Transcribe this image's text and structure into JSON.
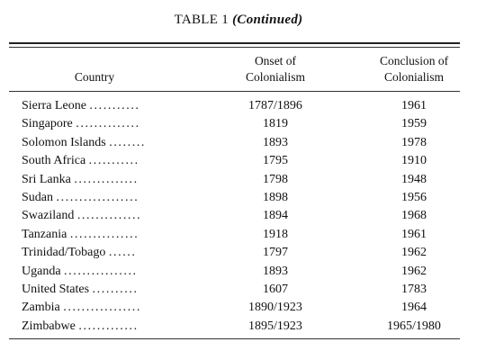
{
  "table": {
    "title_prefix": "TABLE 1",
    "title_suffix": "(Continued)",
    "headers": {
      "country": "Country",
      "onset_line1": "Onset of",
      "onset_line2": "Colonialism",
      "conclusion_line1": "Conclusion of",
      "conclusion_line2": "Colonialism"
    },
    "rows": [
      {
        "country": "Sierra Leone",
        "leader": "...........",
        "onset": "1787/1896",
        "conclusion": "1961"
      },
      {
        "country": "Singapore",
        "leader": "..............",
        "onset": "1819",
        "conclusion": "1959"
      },
      {
        "country": "Solomon Islands",
        "leader": "........",
        "onset": "1893",
        "conclusion": "1978"
      },
      {
        "country": "South Africa",
        "leader": "...........",
        "onset": "1795",
        "conclusion": "1910"
      },
      {
        "country": "Sri Lanka",
        "leader": "..............",
        "onset": "1798",
        "conclusion": "1948"
      },
      {
        "country": "Sudan",
        "leader": "..................",
        "onset": "1898",
        "conclusion": "1956"
      },
      {
        "country": "Swaziland",
        "leader": "..............",
        "onset": "1894",
        "conclusion": "1968"
      },
      {
        "country": "Tanzania",
        "leader": "...............",
        "onset": "1918",
        "conclusion": "1961"
      },
      {
        "country": "Trinidad/Tobago",
        "leader": "......",
        "onset": "1797",
        "conclusion": "1962"
      },
      {
        "country": "Uganda",
        "leader": "................",
        "onset": "1893",
        "conclusion": "1962"
      },
      {
        "country": "United States",
        "leader": "..........",
        "onset": "1607",
        "conclusion": "1783"
      },
      {
        "country": "Zambia",
        "leader": ".................",
        "onset": "1890/1923",
        "conclusion": "1964"
      },
      {
        "country": "Zimbabwe",
        "leader": ".............",
        "onset": "1895/1923",
        "conclusion": "1965/1980"
      }
    ]
  }
}
